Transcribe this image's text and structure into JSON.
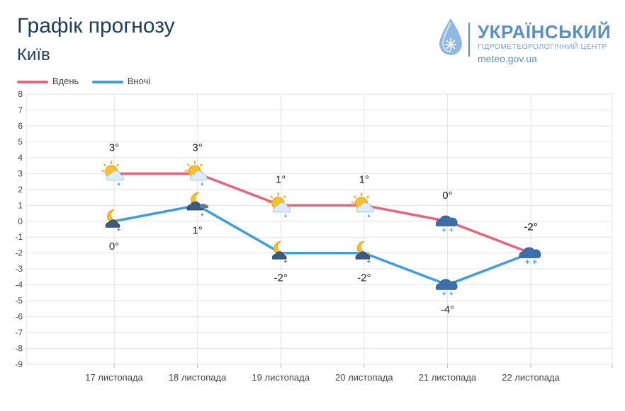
{
  "header": {
    "title": "Графік прогнозу",
    "subtitle": "Київ"
  },
  "logo": {
    "name": "УКРАЇНСЬКИЙ",
    "sub": "ГІДРОМЕТЕОРОЛОГІЧНИЙ ЦЕНТР",
    "url": "meteo.gov.ua",
    "icon": "water-drop-snowflake-icon"
  },
  "colors": {
    "day": "#e8637e",
    "night": "#3d9fdc",
    "grid": "#e3e3e3",
    "text": "#444444",
    "title": "#1f3d5c"
  },
  "chart_data": {
    "type": "line",
    "categories": [
      "17 листопада",
      "18 листопада",
      "19 листопада",
      "20 листопада",
      "21 листопада",
      "22 листопада"
    ],
    "ylim": [
      -9,
      8
    ],
    "yticks": [
      8,
      7,
      6,
      5,
      4,
      3,
      2,
      1,
      0,
      -1,
      -2,
      -3,
      -4,
      -5,
      -6,
      -7,
      -8,
      -9
    ],
    "grid": true,
    "legend_position": "top-left",
    "series": [
      {
        "name": "Вдень",
        "values": [
          3,
          3,
          1,
          1,
          0,
          -2
        ],
        "labels": [
          "3°",
          "3°",
          "1°",
          "1°",
          "0°",
          "-2°"
        ],
        "icons": [
          "sun-cloud-rain-icon",
          "sun-cloud-rain-icon",
          "sun-cloud-rain-icon",
          "sun-cloud-rain-icon",
          "cloud-snow-icon",
          "cloud-snow-icon"
        ]
      },
      {
        "name": "Вночі",
        "values": [
          0,
          1,
          -2,
          -2,
          -4,
          -2
        ],
        "labels": [
          "0°",
          "1°",
          "-2°",
          "-2°",
          "-4°",
          "-2°"
        ],
        "icons": [
          "moon-cloud-snow-icon",
          "moon-cloud-rain-icon",
          "moon-cloud-snow-icon",
          "moon-cloud-snow-icon",
          "cloud-snow-icon",
          "cloud-snow-icon"
        ]
      }
    ]
  }
}
